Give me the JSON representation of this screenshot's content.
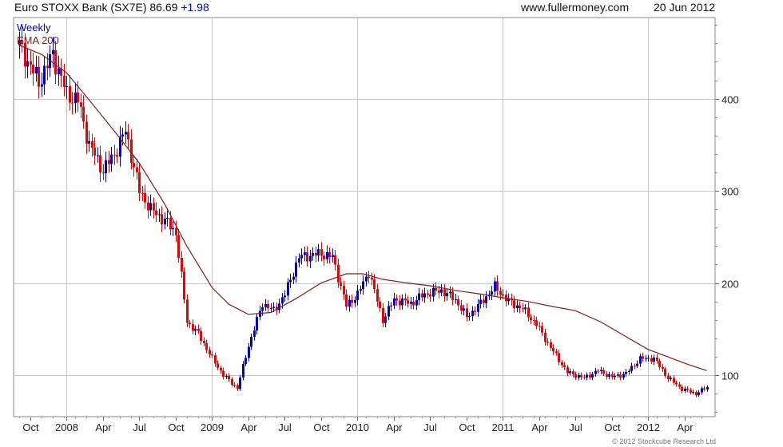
{
  "header": {
    "title": "Euro STOXX Bank (SX7E)",
    "last": "86.69",
    "change": "+1.98",
    "site": "www.fullermoney.com",
    "date": "20 Jun 2012"
  },
  "copyright": "© 2012 Stockcube Research Ltd",
  "colors": {
    "up": "#0000cc",
    "down": "#ee0000",
    "ema": "#8b1a1a",
    "grid": "#c8c8c8"
  },
  "chart_data": {
    "type": "line",
    "grid": true,
    "legend_position": "top-left",
    "ylim": [
      55,
      488
    ],
    "y_ticks": [
      100,
      200,
      300,
      400
    ],
    "x_labels": [
      "Oct",
      "2008",
      "Apr",
      "Jul",
      "Oct",
      "2009",
      "Apr",
      "Jul",
      "Oct",
      "2010",
      "Apr",
      "Jul",
      "Oct",
      "2011",
      "Apr",
      "Jul",
      "Oct",
      "2012",
      "Apr"
    ],
    "x_label_weeks": [
      4,
      17,
      30,
      43,
      56,
      69,
      82,
      95,
      108,
      121,
      134,
      147,
      160,
      173,
      186,
      199,
      212,
      225,
      238
    ],
    "series": [
      {
        "name": "Weekly",
        "kind": "ohlc-bars",
        "x_weeks": [
          0,
          7,
          12,
          17,
          21,
          25,
          30,
          34,
          38,
          43,
          47,
          52,
          56,
          60,
          64,
          69,
          73,
          78,
          82,
          87,
          91,
          95,
          100,
          104,
          108,
          112,
          117,
          121,
          125,
          130,
          134,
          140,
          145,
          151,
          156,
          160,
          165,
          170,
          175,
          180,
          185,
          190,
          196,
          202,
          207,
          212,
          217,
          222,
          227,
          232,
          237,
          242,
          246
        ],
        "values": [
          458,
          418,
          448,
          405,
          398,
          350,
          322,
          340,
          365,
          300,
          280,
          268,
          255,
          158,
          145,
          118,
          100,
          86,
          132,
          178,
          170,
          188,
          228,
          230,
          232,
          228,
          175,
          188,
          212,
          160,
          182,
          178,
          188,
          192,
          182,
          163,
          178,
          196,
          180,
          172,
          155,
          130,
          103,
          97,
          105,
          98,
          102,
          118,
          118,
          97,
          85,
          80,
          87
        ]
      },
      {
        "name": "EMA 200",
        "kind": "line",
        "x_weeks": [
          0,
          8,
          17,
          26,
          34,
          43,
          52,
          60,
          69,
          75,
          82,
          90,
          99,
          108,
          117,
          123,
          130,
          139,
          147,
          156,
          165,
          173,
          182,
          190,
          199,
          208,
          217,
          225,
          232,
          239,
          246
        ],
        "values": [
          458,
          448,
          428,
          395,
          365,
          330,
          286,
          240,
          195,
          177,
          166,
          168,
          183,
          200,
          210,
          210,
          204,
          200,
          197,
          192,
          188,
          184,
          180,
          175,
          170,
          158,
          142,
          128,
          120,
          112,
          105
        ]
      }
    ]
  }
}
